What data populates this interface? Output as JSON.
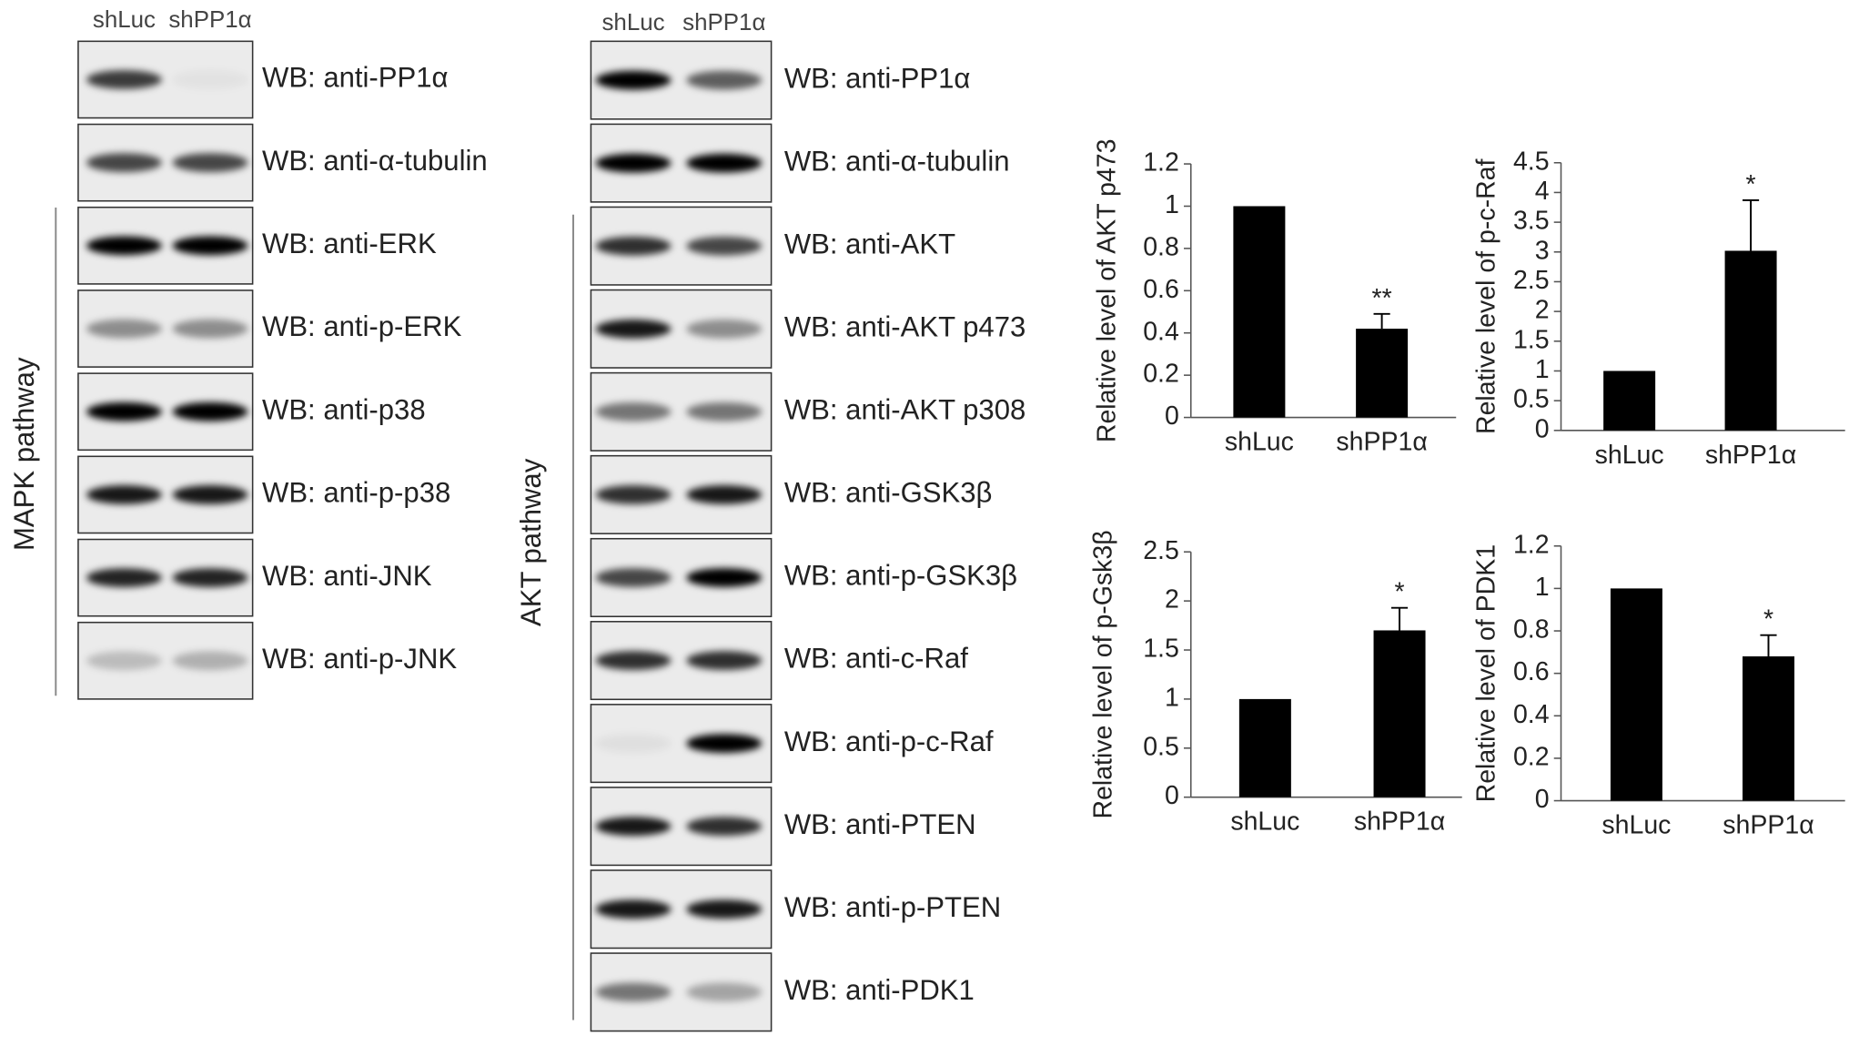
{
  "left_panel": {
    "lanes": [
      "shLuc",
      "shPP1α"
    ],
    "pathway": "MAPK pathway",
    "blots": [
      "WB: anti-PP1α",
      "WB: anti-α-tubulin",
      "WB: anti-ERK",
      "WB: anti-p-ERK",
      "WB: anti-p38",
      "WB: anti-p-p38",
      "WB: anti-JNK",
      "WB: anti-p-JNK"
    ]
  },
  "middle_panel": {
    "lanes": [
      "shLuc",
      "shPP1α"
    ],
    "pathway": "AKT pathway",
    "blots": [
      "WB: anti-PP1α",
      "WB: anti-α-tubulin",
      "WB: anti-AKT",
      "WB: anti-AKT p473",
      "WB: anti-AKT p308",
      "WB: anti-GSK3β",
      "WB: anti-p-GSK3β",
      "WB: anti-c-Raf",
      "WB: anti-p-c-Raf",
      "WB: anti-PTEN",
      "WB: anti-p-PTEN",
      "WB: anti-PDK1"
    ]
  },
  "chart_data": [
    {
      "type": "bar",
      "y_label": "Relative level of AKT p473",
      "categories": [
        "shLuc",
        "shPP1α"
      ],
      "values": [
        1,
        0.42
      ],
      "errors": [
        null,
        0.07
      ],
      "significance": [
        null,
        "**"
      ],
      "color": "#000000",
      "ylim": [
        0,
        1.2
      ],
      "yticks": [
        0,
        0.2,
        0.4,
        0.6,
        0.8,
        1,
        1.2
      ]
    },
    {
      "type": "bar",
      "y_label": "Relative level of p-c-Raf",
      "categories": [
        "shLuc",
        "shPP1α"
      ],
      "values": [
        1,
        3.02
      ],
      "errors": [
        null,
        0.85
      ],
      "significance": [
        null,
        "*"
      ],
      "color": "#000000",
      "ylim": [
        0,
        4.5
      ],
      "yticks": [
        0,
        0.5,
        1,
        1.5,
        2,
        2.5,
        3,
        3.5,
        4,
        4.5
      ]
    },
    {
      "type": "bar",
      "y_label": "Relative level of p-Gsk3β",
      "categories": [
        "shLuc",
        "shPP1α"
      ],
      "values": [
        1,
        1.7
      ],
      "errors": [
        null,
        0.23
      ],
      "significance": [
        null,
        "*"
      ],
      "color": "#000000",
      "ylim": [
        0,
        2.5
      ],
      "yticks": [
        0,
        0.5,
        1,
        1.5,
        2,
        2.5
      ]
    },
    {
      "type": "bar",
      "y_label": "Relative level of PDK1",
      "categories": [
        "shLuc",
        "shPP1α"
      ],
      "values": [
        1,
        0.68
      ],
      "errors": [
        null,
        0.1
      ],
      "significance": [
        null,
        "*"
      ],
      "color": "#000000",
      "ylim": [
        0,
        1.2
      ],
      "yticks": [
        0,
        0.2,
        0.4,
        0.6,
        0.8,
        1,
        1.2
      ]
    }
  ]
}
